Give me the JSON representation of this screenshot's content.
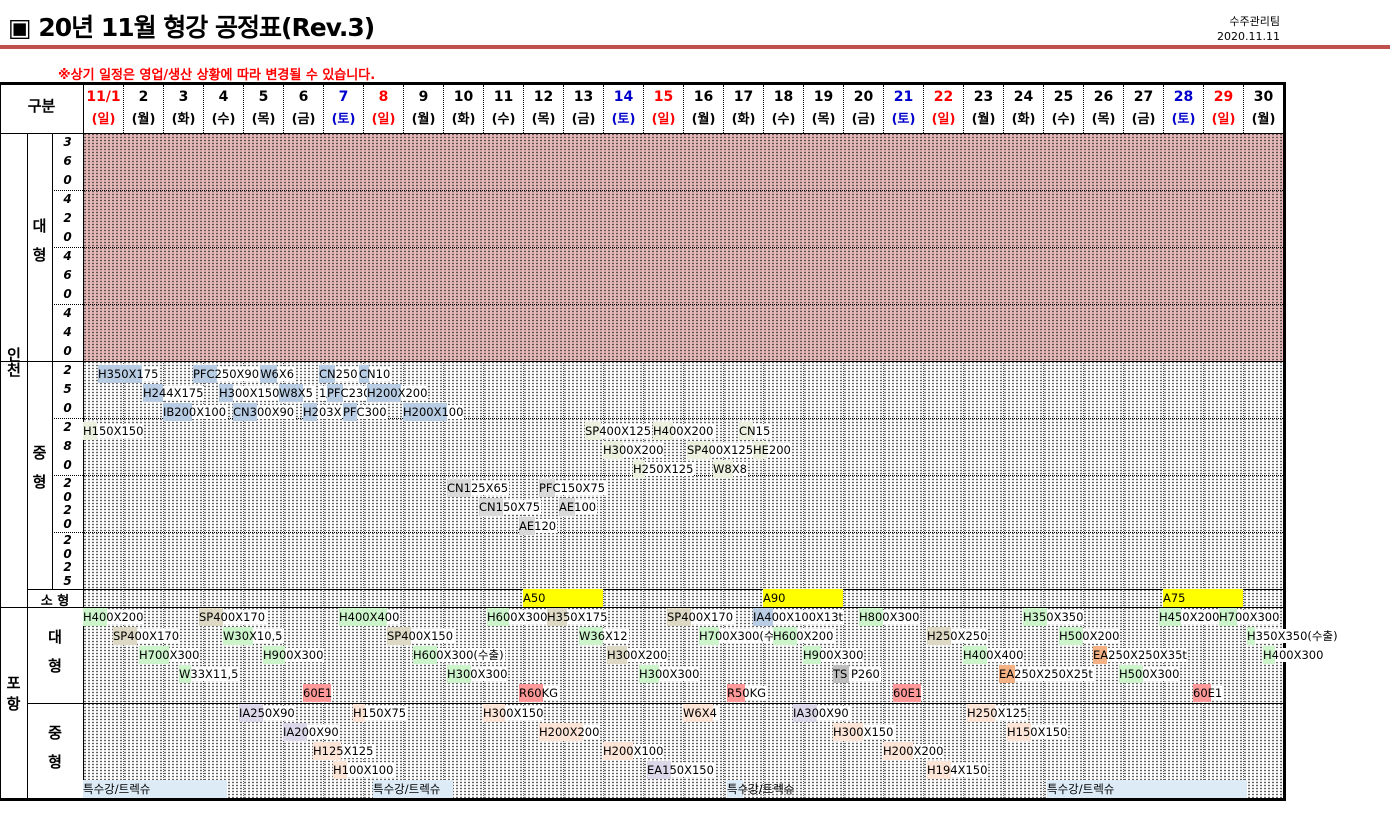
{
  "header": {
    "title": "▣ 20년 11월 형강 공정표(Rev.3)",
    "team": "수주관리팀",
    "date": "2020.11.11",
    "notice": "※상기 일정은 영업/생산 상황에 따라 변경될 수 있습니다.",
    "category_label": "구분"
  },
  "days": [
    {
      "d": "11/1",
      "w": "(일)",
      "t": "sun"
    },
    {
      "d": "2",
      "w": "(월)"
    },
    {
      "d": "3",
      "w": "(화)"
    },
    {
      "d": "4",
      "w": "(수)"
    },
    {
      "d": "5",
      "w": "(목)"
    },
    {
      "d": "6",
      "w": "(금)"
    },
    {
      "d": "7",
      "w": "(토)",
      "t": "sat"
    },
    {
      "d": "8",
      "w": "(일)",
      "t": "sun"
    },
    {
      "d": "9",
      "w": "(월)"
    },
    {
      "d": "10",
      "w": "(화)"
    },
    {
      "d": "11",
      "w": "(수)"
    },
    {
      "d": "12",
      "w": "(목)"
    },
    {
      "d": "13",
      "w": "(금)"
    },
    {
      "d": "14",
      "w": "(토)",
      "t": "sat"
    },
    {
      "d": "15",
      "w": "(일)",
      "t": "sun"
    },
    {
      "d": "16",
      "w": "(월)"
    },
    {
      "d": "17",
      "w": "(화)"
    },
    {
      "d": "18",
      "w": "(수)"
    },
    {
      "d": "19",
      "w": "(목)"
    },
    {
      "d": "20",
      "w": "(금)"
    },
    {
      "d": "21",
      "w": "(토)",
      "t": "sat"
    },
    {
      "d": "22",
      "w": "(일)",
      "t": "sun"
    },
    {
      "d": "23",
      "w": "(월)"
    },
    {
      "d": "24",
      "w": "(화)"
    },
    {
      "d": "25",
      "w": "(수)"
    },
    {
      "d": "26",
      "w": "(목)"
    },
    {
      "d": "27",
      "w": "(금)"
    },
    {
      "d": "28",
      "w": "(토)",
      "t": "sat"
    },
    {
      "d": "29",
      "w": "(일)",
      "t": "sun"
    },
    {
      "d": "30",
      "w": "(월)"
    }
  ],
  "colors": {
    "sun": "#ff0000",
    "sat": "#0000cc",
    "green": "#ccf5cc",
    "tan": "#ddd9c4",
    "blue": "#b8cce4",
    "olive": "#ebf1de",
    "gray": "#d9d9d9",
    "dgray": "#bfbfbf",
    "yellow": "#ffff00",
    "red": "#ff9999",
    "orange": "#f4b183",
    "lav": "#dcd8ea",
    "peach": "#fce4d6",
    "sky": "#ddebf7",
    "ibm": "#b8cce4"
  },
  "labels": {
    "incheon": "인천",
    "pohang": "포항",
    "large": "대형",
    "medium": "중형",
    "small": "소 형",
    "rollers_large": [
      "360",
      "420",
      "460",
      "440"
    ],
    "rollers_medium": [
      "250",
      "280",
      "2020",
      "2025"
    ]
  },
  "sections": {
    "inc_med": [
      {
        "label": "H350X175",
        "day": 1.375,
        "line": 0,
        "span": 1.1,
        "c": "ibm"
      },
      {
        "label": "PFC250X90",
        "day": 3.75,
        "line": 0,
        "span": 0.6,
        "c": "ibm"
      },
      {
        "label": "W6X6",
        "day": 5.43,
        "line": 0,
        "span": 0.43,
        "c": "ibm"
      },
      {
        "label": "CN250",
        "day": 6.9,
        "line": 0,
        "span": 0.4,
        "c": "ibm"
      },
      {
        "label": "CN10",
        "day": 7.9,
        "line": 0,
        "span": 0.25,
        "c": "ibm"
      },
      {
        "label": "H244X175",
        "day": 2.5,
        "line": 1,
        "span": 0.5,
        "c": "ibm"
      },
      {
        "label": "H300X150",
        "day": 4.4,
        "line": 1,
        "span": 0.35,
        "c": "ibm"
      },
      {
        "label": "W8X5",
        "day": 5.9,
        "line": 1,
        "span": 0.6,
        "c": "ibm"
      },
      {
        "label": "1/",
        "day": 6.9,
        "line": 1,
        "span": 0,
        "c": "ibm"
      },
      {
        "label": "PFC230",
        "day": 7.1,
        "line": 1,
        "span": 0.4,
        "c": "ibm"
      },
      {
        "label": "H200X200",
        "day": 8.1,
        "line": 1,
        "span": 0.85,
        "c": "ibm"
      },
      {
        "label": "IB200X100",
        "day": 3.0,
        "line": 2,
        "span": 0.72,
        "c": "ibm"
      },
      {
        "label": "CN300X90",
        "day": 4.75,
        "line": 2,
        "span": 0.6,
        "c": "ibm"
      },
      {
        "label": "H203X",
        "day": 6.5,
        "line": 2,
        "span": 0.35,
        "c": "ibm"
      },
      {
        "label": "PFC300",
        "day": 7.5,
        "line": 2,
        "span": 0.35,
        "c": "ibm"
      },
      {
        "label": "H200X100",
        "day": 9.0,
        "line": 2,
        "span": 1.1,
        "c": "ibm"
      },
      {
        "label": "H150X150",
        "day": 1.0,
        "line": 3,
        "span": 0.35,
        "c": "olive"
      },
      {
        "label": "SP400X125",
        "day": 13.55,
        "line": 3,
        "span": 0.4,
        "c": "olive"
      },
      {
        "label": "H400X200",
        "day": 15.25,
        "line": 3,
        "span": 0.5,
        "c": "olive"
      },
      {
        "label": "CN15",
        "day": 17.4,
        "line": 3,
        "span": 0.35,
        "c": "olive"
      },
      {
        "label": "H300X200",
        "day": 14.0,
        "line": 4,
        "span": 0.5,
        "c": "olive"
      },
      {
        "label": "SP400X125",
        "day": 16.1,
        "line": 4,
        "span": 0.6,
        "c": "olive"
      },
      {
        "label": "HE200",
        "day": 17.75,
        "line": 4,
        "span": 0.35,
        "c": "olive"
      },
      {
        "label": "H250X125",
        "day": 14.75,
        "line": 5,
        "span": 0.3,
        "c": "olive"
      },
      {
        "label": "W8X8",
        "day": 16.75,
        "line": 5,
        "span": 0.5,
        "c": "olive"
      },
      {
        "label": "CN125X65",
        "day": 10.1,
        "line": 6,
        "span": 0.6,
        "c": "gray"
      },
      {
        "label": "PFC150X75",
        "day": 12.4,
        "line": 6,
        "span": 0.4,
        "c": "gray"
      },
      {
        "label": "CN150X75",
        "day": 10.9,
        "line": 7,
        "span": 0.6,
        "c": "gray"
      },
      {
        "label": "AE100",
        "day": 12.9,
        "line": 7,
        "span": 0.4,
        "c": "gray"
      },
      {
        "label": "AE120",
        "day": 11.9,
        "line": 8,
        "span": 0.4,
        "c": "gray"
      }
    ],
    "small": [
      {
        "label": "A50",
        "day": 12.0,
        "line": 0,
        "span": 2,
        "c": "yellow"
      },
      {
        "label": "A90",
        "day": 18.0,
        "line": 0,
        "span": 2,
        "c": "yellow"
      },
      {
        "label": "A75",
        "day": 28.0,
        "line": 0,
        "span": 2,
        "c": "yellow"
      }
    ],
    "poh_large": [
      {
        "label": "H400X200",
        "day": 1.0,
        "line": 0,
        "span": 0.6,
        "c": "green"
      },
      {
        "label": "SP400X170",
        "day": 3.9,
        "line": 0,
        "span": 0.6,
        "c": "tan"
      },
      {
        "label": "H400X400",
        "day": 7.4,
        "line": 0,
        "span": 1.2,
        "c": "green"
      },
      {
        "label": "H600X300",
        "day": 11.1,
        "line": 0,
        "span": 0.55,
        "c": "green"
      },
      {
        "label": "H350X175",
        "day": 12.6,
        "line": 0,
        "span": 0.5,
        "c": "tan"
      },
      {
        "label": "SP400X170",
        "day": 15.6,
        "line": 0,
        "span": 0.6,
        "c": "tan"
      },
      {
        "label": "IA400X100X13t",
        "day": 17.75,
        "line": 0,
        "span": 0.5,
        "c": "blue"
      },
      {
        "label": "H800X300",
        "day": 20.4,
        "line": 0,
        "span": 0.6,
        "c": "green"
      },
      {
        "label": "H350X350",
        "day": 24.5,
        "line": 0,
        "span": 0.6,
        "c": "green"
      },
      {
        "label": "H450X200",
        "day": 27.9,
        "line": 0,
        "span": 0.55,
        "c": "green"
      },
      {
        "label": "H700X300",
        "day": 29.4,
        "line": 0,
        "span": 0.45,
        "c": "green"
      },
      {
        "label": "SP400X170",
        "day": 1.75,
        "line": 1,
        "span": 0.6,
        "c": "tan"
      },
      {
        "label": "W30X10,5",
        "day": 4.5,
        "line": 1,
        "span": 0.75,
        "c": "green"
      },
      {
        "label": "SP400X150",
        "day": 8.6,
        "line": 1,
        "span": 0.6,
        "c": "tan"
      },
      {
        "label": "W36X12",
        "day": 13.4,
        "line": 1,
        "span": 0.6,
        "c": "green"
      },
      {
        "label": "H700X300(수",
        "day": 16.4,
        "line": 1,
        "span": 0.5,
        "c": "green"
      },
      {
        "label": "H600X200",
        "day": 18.25,
        "line": 1,
        "span": 0.6,
        "c": "green"
      },
      {
        "label": "H250X250",
        "day": 22.1,
        "line": 1,
        "span": 0.6,
        "c": "tan"
      },
      {
        "label": "H500X200",
        "day": 25.4,
        "line": 1,
        "span": 0.6,
        "c": "green"
      },
      {
        "label": "H350X350(수출)",
        "day": 30.1,
        "line": 1,
        "span": 0.2,
        "c": "green"
      },
      {
        "label": "H700X300",
        "day": 2.4,
        "line": 2,
        "span": 0.75,
        "c": "green"
      },
      {
        "label": "H900X300",
        "day": 5.5,
        "line": 2,
        "span": 0.55,
        "c": "green"
      },
      {
        "label": "H600X300(수출)",
        "day": 9.25,
        "line": 2,
        "span": 0.6,
        "c": "green"
      },
      {
        "label": "H300X200",
        "day": 14.1,
        "line": 2,
        "span": 0.5,
        "c": "tan"
      },
      {
        "label": "H900X300",
        "day": 19.0,
        "line": 2,
        "span": 0.45,
        "c": "green"
      },
      {
        "label": "H400X400",
        "day": 23.0,
        "line": 2,
        "span": 0.6,
        "c": "green"
      },
      {
        "label": "EA250X250X35t",
        "day": 26.25,
        "line": 2,
        "span": 0.35,
        "c": "orange"
      },
      {
        "label": "H400X300",
        "day": 30.5,
        "line": 2,
        "span": 0.3,
        "c": "green"
      },
      {
        "label": "W33X11,5",
        "day": 3.4,
        "line": 3,
        "span": 0.3,
        "c": "green"
      },
      {
        "label": "H300X300",
        "day": 10.1,
        "line": 3,
        "span": 0.6,
        "c": "green"
      },
      {
        "label": "H300X300",
        "day": 14.9,
        "line": 3,
        "span": 0.5,
        "c": "green"
      },
      {
        "label": "TS P260",
        "day": 19.75,
        "line": 3,
        "span": 0.4,
        "c": "dgray"
      },
      {
        "label": "EA250X250X25t",
        "day": 23.9,
        "line": 3,
        "span": 0.4,
        "c": "orange"
      },
      {
        "label": "H500X300",
        "day": 26.9,
        "line": 3,
        "span": 0.6,
        "c": "green"
      },
      {
        "label": "60E1",
        "day": 6.5,
        "line": 4,
        "span": 0.7,
        "c": "red"
      },
      {
        "label": "R60KG",
        "day": 11.9,
        "line": 4,
        "span": 0.6,
        "c": "red"
      },
      {
        "label": "R50KG",
        "day": 17.1,
        "line": 4,
        "span": 0.45,
        "c": "red"
      },
      {
        "label": "60E1",
        "day": 21.25,
        "line": 4,
        "span": 0.7,
        "c": "red"
      },
      {
        "label": "60E1",
        "day": 28.75,
        "line": 4,
        "span": 0.45,
        "c": "red"
      }
    ],
    "poh_med": [
      {
        "label": "IA250X90",
        "day": 4.9,
        "line": 0,
        "span": 0.6,
        "c": "lav"
      },
      {
        "label": "H150X75",
        "day": 7.75,
        "line": 0,
        "span": 0.3,
        "c": "peach"
      },
      {
        "label": "H300X150",
        "day": 11.0,
        "line": 0,
        "span": 0.55,
        "c": "peach"
      },
      {
        "label": "W6X4",
        "day": 16.0,
        "line": 0,
        "span": 0.75,
        "c": "peach"
      },
      {
        "label": "IA300X90",
        "day": 18.75,
        "line": 0,
        "span": 0.6,
        "c": "lav"
      },
      {
        "label": "H250X125",
        "day": 23.1,
        "line": 0,
        "span": 0.7,
        "c": "peach"
      },
      {
        "label": "IA200X90",
        "day": 6.0,
        "line": 1,
        "span": 0.6,
        "c": "lav"
      },
      {
        "label": "H200X200",
        "day": 12.4,
        "line": 1,
        "span": 1.1,
        "c": "peach"
      },
      {
        "label": "H300X150",
        "day": 19.75,
        "line": 1,
        "span": 0.75,
        "c": "peach"
      },
      {
        "label": "H150X150",
        "day": 24.1,
        "line": 1,
        "span": 0.6,
        "c": "peach"
      },
      {
        "label": "H125X125",
        "day": 6.75,
        "line": 2,
        "span": 0.7,
        "c": "peach"
      },
      {
        "label": "H200X100",
        "day": 14.0,
        "line": 2,
        "span": 0.75,
        "c": "peach"
      },
      {
        "label": "H200X200",
        "day": 21.0,
        "line": 2,
        "span": 0.75,
        "c": "peach"
      },
      {
        "label": "H100X100",
        "day": 7.25,
        "line": 3,
        "span": 0.35,
        "c": "peach"
      },
      {
        "label": "EA150X150",
        "day": 15.1,
        "line": 3,
        "span": 0.6,
        "c": "lav"
      },
      {
        "label": "H194X150",
        "day": 22.1,
        "line": 3,
        "span": 0.6,
        "c": "peach"
      },
      {
        "label": "특수강/트렉슈",
        "day": 1.0,
        "line": 4,
        "span": 3.6,
        "c": "sky"
      },
      {
        "label": "특수강/트렉슈",
        "day": 8.25,
        "line": 4,
        "span": 2.0,
        "c": "sky"
      },
      {
        "label": "특수강/트렉슈",
        "day": 17.1,
        "line": 4,
        "span": 0.4,
        "c": "sky"
      },
      {
        "label": "특수강/트렉슈",
        "day": 25.1,
        "line": 4,
        "span": 5.0,
        "c": "sky"
      }
    ]
  }
}
